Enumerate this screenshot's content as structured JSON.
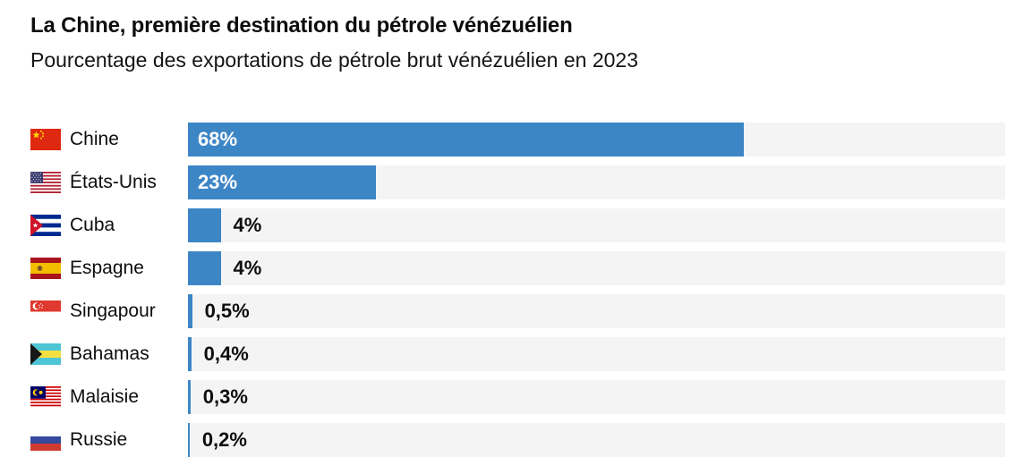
{
  "header": {
    "title": "La Chine, première destination du pétrole vénézuélien",
    "subtitle": "Pourcentage des exportations de pétrole brut vénézuélien en 2023"
  },
  "colors": {
    "bar_fill": "#3d86c6",
    "bar_track": "#f4f4f4",
    "text": "#0d0d0d",
    "value_label_inside": "#ffffff"
  },
  "chart_data": {
    "type": "bar",
    "orientation": "horizontal",
    "title": "La Chine, première destination du pétrole vénézuélien",
    "subtitle": "Pourcentage des exportations de pétrole brut vénézuélien en 2023",
    "unit": "%",
    "xlim": [
      0,
      100
    ],
    "grid": false,
    "legend": false,
    "categories": [
      "Chine",
      "États-Unis",
      "Cuba",
      "Espagne",
      "Singapour",
      "Bahamas",
      "Malaisie",
      "Russie"
    ],
    "values": [
      68,
      23,
      4,
      4,
      0.5,
      0.4,
      0.3,
      0.2
    ],
    "value_labels": [
      "68%",
      "23%",
      "4%",
      "4%",
      "0,5%",
      "0,4%",
      "0,3%",
      "0,2%"
    ],
    "flag_icons": [
      "china-flag-icon",
      "usa-flag-icon",
      "cuba-flag-icon",
      "spain-flag-icon",
      "singapore-flag-icon",
      "bahamas-flag-icon",
      "malaysia-flag-icon",
      "russia-flag-icon"
    ],
    "value_label_inside_threshold": 10
  }
}
